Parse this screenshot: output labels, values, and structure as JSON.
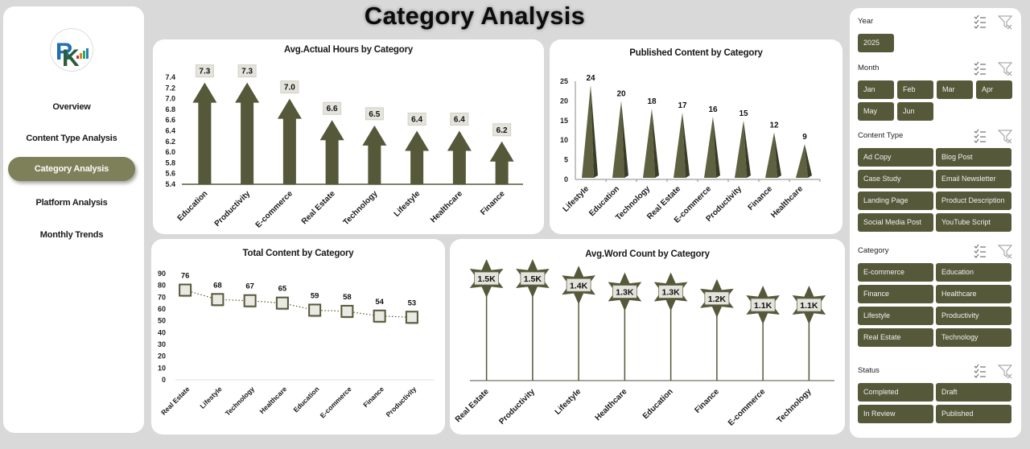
{
  "page_title": "Category Analysis",
  "colors": {
    "accent": "#555839",
    "nav_active": "#7d8058",
    "label_box": "#e4e4dc"
  },
  "sidebar": {
    "logo_icon": "rk-logo-icon",
    "items": [
      {
        "label": "Overview",
        "active": false
      },
      {
        "label": "Content Type Analysis",
        "active": false
      },
      {
        "label": "Category Analysis",
        "active": true
      },
      {
        "label": "Platform Analysis",
        "active": false
      },
      {
        "label": "Monthly Trends",
        "active": false
      }
    ]
  },
  "slicers": {
    "year": {
      "label": "Year",
      "options": [
        "2025"
      ]
    },
    "month": {
      "label": "Month",
      "options": [
        "Jan",
        "Feb",
        "Mar",
        "Apr",
        "May",
        "Jun"
      ]
    },
    "content_type": {
      "label": "Content Type",
      "options": [
        "Ad Copy",
        "Blog Post",
        "Case Study",
        "Email Newsletter",
        "Landing Page",
        "Product Description",
        "Social Media Post",
        "YouTube Script"
      ]
    },
    "category": {
      "label": "Category",
      "options": [
        "E-commerce",
        "Education",
        "Finance",
        "Healthcare",
        "Lifestyle",
        "Productivity",
        "Real Estate",
        "Technology"
      ]
    },
    "status": {
      "label": "Status",
      "options": [
        "Completed",
        "Draft",
        "In Review",
        "Published"
      ]
    }
  },
  "chart_data": [
    {
      "id": "hours",
      "type": "bar",
      "title": "Avg.Actual Hours by Category",
      "categories": [
        "Education",
        "Productivity",
        "E-commerce",
        "Real Estate",
        "Technology",
        "Lifestyle",
        "Healthcare",
        "Finance"
      ],
      "values": [
        7.3,
        7.3,
        7.0,
        6.6,
        6.5,
        6.4,
        6.4,
        6.2
      ],
      "labels": [
        "7.3",
        "7.3",
        "7.0",
        "6.6",
        "6.5",
        "6.4",
        "6.4",
        "6.2"
      ],
      "yticks": [
        "7.4",
        "7.2",
        "7.0",
        "6.8",
        "6.6",
        "6.4",
        "6.2",
        "6.0",
        "5.8",
        "5.6",
        "5.4"
      ],
      "ylim": [
        5.4,
        7.4
      ],
      "xlabel": "",
      "ylabel": "",
      "grid": false
    },
    {
      "id": "published",
      "type": "bar",
      "title": "Published Content by Category",
      "categories": [
        "Lifestyle",
        "Education",
        "Technology",
        "Real Estate",
        "E-commerce",
        "Productivity",
        "Finance",
        "Healthcare"
      ],
      "values": [
        24,
        20,
        18,
        17,
        16,
        15,
        12,
        9
      ],
      "labels": [
        "24",
        "20",
        "18",
        "17",
        "16",
        "15",
        "12",
        "9"
      ],
      "yticks": [
        "25",
        "20",
        "15",
        "10",
        "5",
        "0"
      ],
      "ylim": [
        0,
        25
      ],
      "xlabel": "",
      "ylabel": "",
      "grid": false
    },
    {
      "id": "total",
      "type": "line",
      "title": "Total Content by Category",
      "categories": [
        "Real Estate",
        "Lifestyle",
        "Technology",
        "Healthcare",
        "Education",
        "E-commerce",
        "Finance",
        "Productivity"
      ],
      "values": [
        76,
        68,
        67,
        65,
        59,
        58,
        54,
        53
      ],
      "labels": [
        "76",
        "68",
        "67",
        "65",
        "59",
        "58",
        "54",
        "53"
      ],
      "yticks": [
        "90",
        "80",
        "70",
        "60",
        "50",
        "40",
        "30",
        "20",
        "10",
        "0"
      ],
      "ylim": [
        0,
        90
      ],
      "xlabel": "",
      "ylabel": "",
      "grid": false
    },
    {
      "id": "words",
      "type": "bar",
      "title": "Avg.Word Count by Category",
      "categories": [
        "Real Estate",
        "Productivity",
        "Lifestyle",
        "Healthcare",
        "Education",
        "Finance",
        "E-commerce",
        "Technology"
      ],
      "values": [
        1500,
        1500,
        1400,
        1300,
        1300,
        1200,
        1100,
        1100
      ],
      "labels": [
        "1.5K",
        "1.5K",
        "1.4K",
        "1.3K",
        "1.3K",
        "1.2K",
        "1.1K",
        "1.1K"
      ],
      "xlabel": "",
      "ylabel": "",
      "grid": false
    }
  ]
}
